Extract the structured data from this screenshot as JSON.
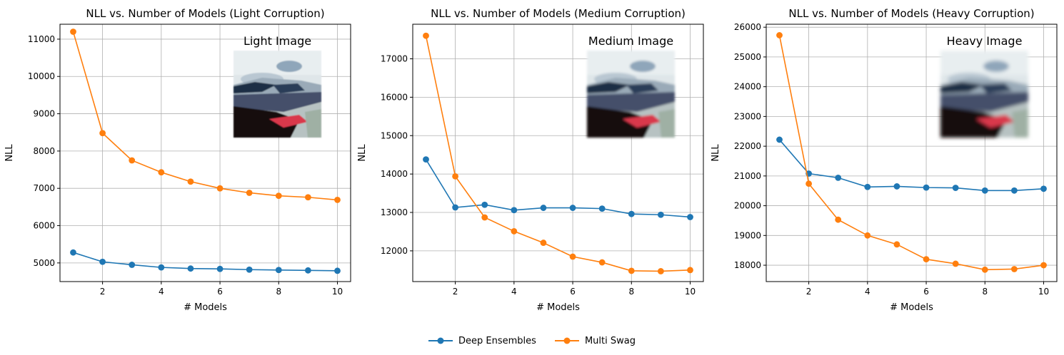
{
  "legend": {
    "items": [
      {
        "name": "Deep Ensembles",
        "color": "#1f77b4"
      },
      {
        "name": "Multi Swag",
        "color": "#ff7f0e"
      }
    ]
  },
  "chart_data": [
    {
      "type": "line",
      "title": "NLL vs. Number of Models (Light Corruption)",
      "xlabel": "# Models",
      "ylabel": "NLL",
      "x": [
        1,
        2,
        3,
        4,
        5,
        6,
        7,
        8,
        9,
        10
      ],
      "xlim": [
        0.55,
        10.45
      ],
      "ylim": [
        4500,
        11400
      ],
      "xticks": [
        2,
        4,
        6,
        8,
        10
      ],
      "yticks": [
        5000,
        6000,
        7000,
        8000,
        9000,
        10000,
        11000
      ],
      "grid": true,
      "inset_title": "Light Image",
      "inset_blur": 0.8,
      "series": [
        {
          "name": "Deep Ensembles",
          "color": "#1f77b4",
          "values": [
            5280,
            5030,
            4950,
            4880,
            4850,
            4840,
            4820,
            4810,
            4800,
            4790
          ]
        },
        {
          "name": "Multi Swag",
          "color": "#ff7f0e",
          "values": [
            11200,
            8480,
            7750,
            7430,
            7180,
            7000,
            6880,
            6800,
            6760,
            6690
          ]
        }
      ]
    },
    {
      "type": "line",
      "title": "NLL vs. Number of Models (Medium Corruption)",
      "xlabel": "# Models",
      "ylabel": "NLL",
      "x": [
        1,
        2,
        3,
        4,
        5,
        6,
        7,
        8,
        9,
        10
      ],
      "xlim": [
        0.55,
        10.45
      ],
      "ylim": [
        11200,
        17900
      ],
      "xticks": [
        2,
        4,
        6,
        8,
        10
      ],
      "yticks": [
        12000,
        13000,
        14000,
        15000,
        16000,
        17000
      ],
      "grid": true,
      "inset_title": "Medium Image",
      "inset_blur": 1.6,
      "series": [
        {
          "name": "Deep Ensembles",
          "color": "#1f77b4",
          "values": [
            14380,
            13130,
            13200,
            13060,
            13120,
            13120,
            13100,
            12960,
            12940,
            12880
          ]
        },
        {
          "name": "Multi Swag",
          "color": "#ff7f0e",
          "values": [
            17600,
            13940,
            12870,
            12510,
            12210,
            11850,
            11700,
            11480,
            11470,
            11500
          ]
        }
      ]
    },
    {
      "type": "line",
      "title": "NLL vs. Number of Models (Heavy Corruption)",
      "xlabel": "# Models",
      "ylabel": "NLL",
      "x": [
        1,
        2,
        3,
        4,
        5,
        6,
        7,
        8,
        9,
        10
      ],
      "xlim": [
        0.55,
        10.45
      ],
      "ylim": [
        17450,
        26100
      ],
      "xticks": [
        2,
        4,
        6,
        8,
        10
      ],
      "yticks": [
        18000,
        19000,
        20000,
        21000,
        22000,
        23000,
        24000,
        25000,
        26000
      ],
      "grid": true,
      "inset_title": "Heavy Image",
      "inset_blur": 2.6,
      "series": [
        {
          "name": "Deep Ensembles",
          "color": "#1f77b4",
          "values": [
            22220,
            21080,
            20940,
            20630,
            20650,
            20610,
            20600,
            20510,
            20510,
            20570
          ]
        },
        {
          "name": "Multi Swag",
          "color": "#ff7f0e",
          "values": [
            25730,
            20740,
            19530,
            19000,
            18700,
            18200,
            18050,
            17850,
            17870,
            18000
          ]
        }
      ]
    }
  ]
}
